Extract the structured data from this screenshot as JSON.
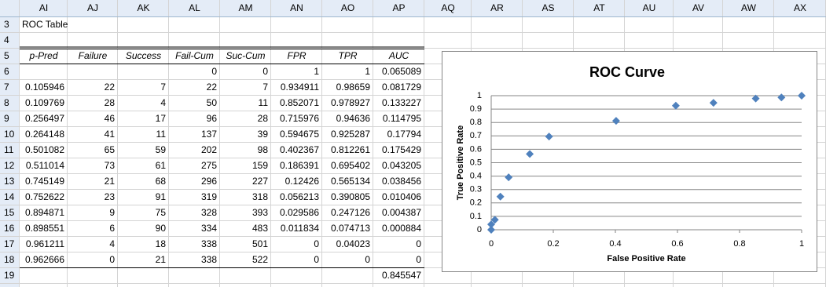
{
  "sheet": {
    "column_headers": [
      "AI",
      "AJ",
      "AK",
      "AL",
      "AM",
      "AN",
      "AO",
      "AP",
      "AQ",
      "AR",
      "AS",
      "AT",
      "AU",
      "AV",
      "AW",
      "AX"
    ],
    "row_numbers": [
      3,
      4,
      5,
      6,
      7,
      8,
      9,
      10,
      11,
      12,
      13,
      14,
      15,
      16,
      17,
      18,
      19
    ],
    "title": "ROC Table",
    "header": [
      "p-Pred",
      "Failure",
      "Success",
      "Fail-Cum",
      "Suc-Cum",
      "FPR",
      "TPR",
      "AUC"
    ],
    "rows": [
      [
        null,
        null,
        null,
        0,
        0,
        1,
        1,
        0.065089
      ],
      [
        0.105946,
        22,
        7,
        22,
        7,
        0.934911,
        0.98659,
        0.081729
      ],
      [
        0.109769,
        28,
        4,
        50,
        11,
        0.852071,
        0.978927,
        0.133227
      ],
      [
        0.256497,
        46,
        17,
        96,
        28,
        0.715976,
        0.94636,
        0.114795
      ],
      [
        0.264148,
        41,
        11,
        137,
        39,
        0.594675,
        0.925287,
        0.17794
      ],
      [
        0.501082,
        65,
        59,
        202,
        98,
        0.402367,
        0.812261,
        0.175429
      ],
      [
        0.511014,
        73,
        61,
        275,
        159,
        0.186391,
        0.695402,
        0.043205
      ],
      [
        0.745149,
        21,
        68,
        296,
        227,
        0.12426,
        0.565134,
        0.038456
      ],
      [
        0.752622,
        23,
        91,
        319,
        318,
        0.056213,
        0.390805,
        0.010406
      ],
      [
        0.894871,
        9,
        75,
        328,
        393,
        0.029586,
        0.247126,
        0.004387
      ],
      [
        0.898551,
        6,
        90,
        334,
        483,
        0.011834,
        0.074713,
        0.000884
      ],
      [
        0.961211,
        4,
        18,
        338,
        501,
        0,
        0.04023,
        0
      ],
      [
        0.962666,
        0,
        21,
        338,
        522,
        0,
        0,
        0
      ],
      [
        null,
        null,
        null,
        null,
        null,
        null,
        null,
        0.845547
      ]
    ]
  },
  "chart_data": {
    "type": "scatter",
    "title": "ROC Curve",
    "x_label": "False Positive Rate",
    "y_label": "True Positive Rate",
    "color": "#4f81bd",
    "x": [
      1,
      0.934911,
      0.852071,
      0.715976,
      0.594675,
      0.402367,
      0.186391,
      0.12426,
      0.056213,
      0.029586,
      0.011834,
      0,
      0
    ],
    "values": [
      1,
      0.98659,
      0.978927,
      0.94636,
      0.925287,
      0.812261,
      0.695402,
      0.565134,
      0.390805,
      0.247126,
      0.074713,
      0.04023,
      0
    ],
    "xlim": [
      0,
      1
    ],
    "xticks": [
      0,
      0.2,
      0.4,
      0.6,
      0.8,
      1
    ],
    "ylim": [
      0,
      1
    ],
    "yticks": [
      0,
      0.1,
      0.2,
      0.3,
      0.4,
      0.5,
      0.6,
      0.7,
      0.8,
      0.9,
      1
    ],
    "grid": true
  }
}
